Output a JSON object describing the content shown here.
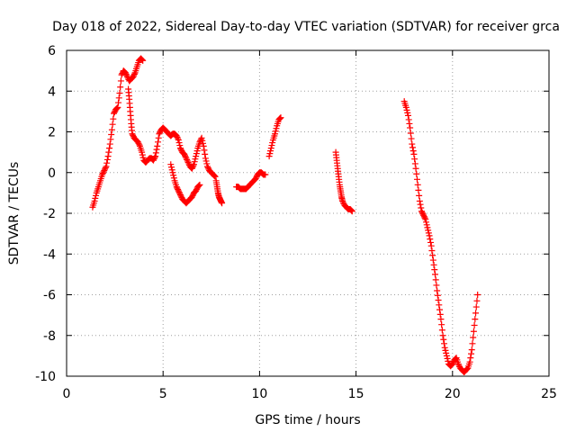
{
  "chart_data": {
    "type": "scatter",
    "title": "Day 018 of 2022, Sidereal Day-to-day VTEC variation (SDTVAR) for receiver grca",
    "xlabel": "GPS time / hours",
    "ylabel": "SDTVAR / TECUs",
    "xlim": [
      0,
      25
    ],
    "ylim": [
      -10,
      6
    ],
    "xticks": [
      0,
      5,
      10,
      15,
      20,
      25
    ],
    "yticks": [
      -10,
      -8,
      -6,
      -4,
      -2,
      0,
      2,
      4,
      6
    ],
    "grid": true,
    "marker": "+",
    "marker_color": "#ff0000",
    "segments": [
      {
        "x": [
          1.35,
          1.45,
          1.55,
          1.65,
          1.75,
          1.85,
          1.95,
          2.05,
          2.15,
          2.25,
          2.35,
          2.45,
          2.55,
          2.65,
          2.75,
          2.85,
          2.95,
          3.05,
          3.15,
          3.25,
          3.35,
          3.45,
          3.55,
          3.65,
          3.75,
          3.85,
          3.95
        ],
        "y": [
          -1.7,
          -1.4,
          -1.0,
          -0.7,
          -0.4,
          -0.1,
          0.1,
          0.3,
          0.8,
          1.4,
          2.1,
          2.9,
          3.1,
          3.2,
          3.9,
          4.8,
          5.0,
          4.9,
          4.7,
          4.5,
          4.6,
          4.7,
          4.9,
          5.2,
          5.5,
          5.6,
          5.5
        ]
      },
      {
        "x": [
          3.2,
          3.25,
          3.3,
          3.35,
          3.4,
          3.5,
          3.6,
          3.7,
          3.8,
          3.9,
          4.0,
          4.1,
          4.2,
          4.3,
          4.4,
          4.5,
          4.6,
          4.7,
          4.8,
          4.9,
          5.0,
          5.1,
          5.2,
          5.3,
          5.4,
          5.5,
          5.6,
          5.7,
          5.8,
          5.9,
          6.0,
          6.1,
          6.2,
          6.3,
          6.4,
          6.5,
          6.6,
          6.7,
          6.8,
          6.9,
          7.0,
          7.1,
          7.2,
          7.3,
          7.4,
          7.5,
          7.6,
          7.7
        ],
        "y": [
          4.1,
          3.6,
          3.0,
          2.4,
          1.9,
          1.7,
          1.6,
          1.5,
          1.3,
          1.0,
          0.6,
          0.5,
          0.6,
          0.7,
          0.7,
          0.6,
          0.8,
          1.3,
          1.9,
          2.1,
          2.2,
          2.1,
          2.0,
          1.9,
          1.8,
          1.9,
          1.9,
          1.8,
          1.6,
          1.2,
          1.0,
          0.9,
          0.7,
          0.5,
          0.3,
          0.2,
          0.4,
          0.8,
          1.2,
          1.5,
          1.7,
          1.3,
          0.7,
          0.3,
          0.1,
          0.0,
          -0.1,
          -0.2
        ]
      },
      {
        "x": [
          5.4,
          5.5,
          5.6,
          5.7,
          5.8,
          5.9,
          6.0,
          6.1,
          6.2,
          6.3,
          6.4,
          6.5,
          6.6,
          6.7,
          6.8,
          6.9
        ],
        "y": [
          0.4,
          0.0,
          -0.4,
          -0.7,
          -0.9,
          -1.1,
          -1.3,
          -1.4,
          -1.5,
          -1.4,
          -1.3,
          -1.2,
          -1.0,
          -0.9,
          -0.7,
          -0.6
        ]
      },
      {
        "x": [
          7.75,
          7.8,
          7.85,
          7.9,
          7.95,
          8.0,
          8.05
        ],
        "y": [
          -0.4,
          -0.7,
          -1.0,
          -1.2,
          -1.3,
          -1.4,
          -1.5
        ]
      },
      {
        "x": [
          8.8,
          8.9,
          9.0,
          9.1,
          9.2,
          9.3,
          9.4,
          9.5,
          9.6,
          9.7,
          9.8,
          9.9,
          10.0,
          10.1,
          10.2,
          10.3
        ],
        "y": [
          -0.7,
          -0.7,
          -0.8,
          -0.8,
          -0.8,
          -0.8,
          -0.7,
          -0.6,
          -0.5,
          -0.4,
          -0.3,
          -0.1,
          0.0,
          0.0,
          -0.1,
          -0.1
        ]
      },
      {
        "x": [
          10.5,
          10.6,
          10.7,
          10.8,
          10.9,
          11.0,
          11.1
        ],
        "y": [
          0.8,
          1.2,
          1.6,
          1.9,
          2.3,
          2.6,
          2.7
        ]
      },
      {
        "x": [
          13.95,
          14.0,
          14.05,
          14.1,
          14.15,
          14.2,
          14.25,
          14.3,
          14.4,
          14.5,
          14.6,
          14.7,
          14.8
        ],
        "y": [
          1.0,
          0.6,
          0.2,
          -0.2,
          -0.6,
          -0.9,
          -1.2,
          -1.4,
          -1.6,
          -1.7,
          -1.8,
          -1.8,
          -1.9
        ]
      },
      {
        "x": [
          17.5,
          17.6,
          17.7,
          17.8,
          17.9,
          18.0,
          18.1,
          18.2,
          18.3,
          18.4,
          18.5,
          18.6,
          18.7,
          18.8,
          18.9,
          19.0,
          19.1,
          19.2,
          19.3,
          19.4,
          19.5,
          19.6,
          19.7,
          19.8,
          19.9,
          20.0,
          20.1,
          20.2,
          20.3,
          20.4,
          20.5,
          20.6,
          20.7,
          20.8,
          20.9,
          21.0,
          21.1,
          21.2,
          21.3
        ],
        "y": [
          3.5,
          3.2,
          2.8,
          2.2,
          1.4,
          0.9,
          0.2,
          -0.6,
          -1.4,
          -1.9,
          -2.1,
          -2.3,
          -2.7,
          -3.1,
          -3.6,
          -4.3,
          -5.0,
          -5.8,
          -6.5,
          -7.2,
          -8.0,
          -8.6,
          -9.0,
          -9.4,
          -9.5,
          -9.4,
          -9.2,
          -9.1,
          -9.4,
          -9.6,
          -9.7,
          -9.8,
          -9.7,
          -9.6,
          -9.3,
          -8.7,
          -7.8,
          -6.9,
          -6.0
        ]
      }
    ]
  }
}
